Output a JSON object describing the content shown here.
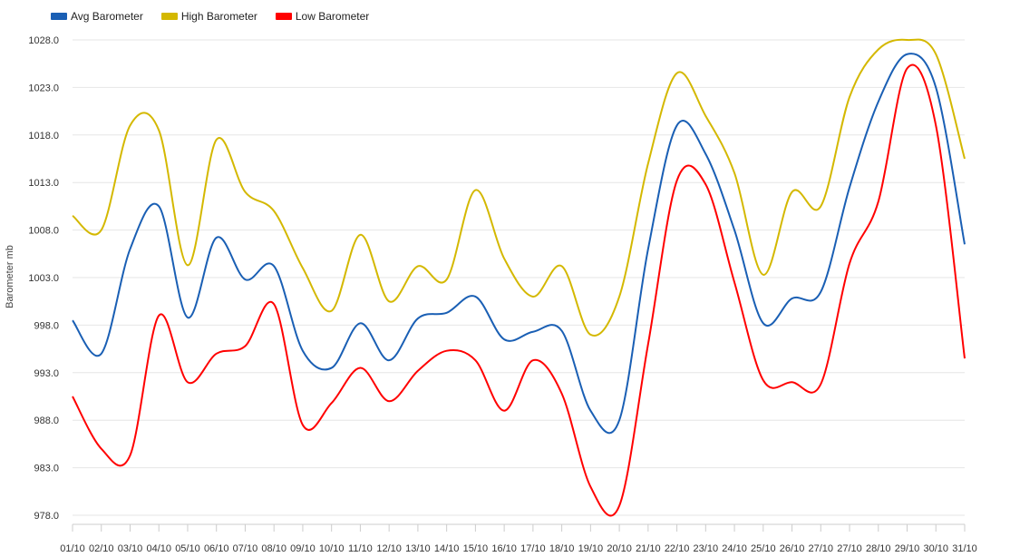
{
  "chart_data": {
    "type": "line",
    "smooth": true,
    "ylabel": "Barometer mb",
    "ylim": [
      978.0,
      1028.0
    ],
    "yticks": [
      "978.0",
      "983.0",
      "988.0",
      "993.0",
      "998.0",
      "1003.0",
      "1008.0",
      "1013.0",
      "1018.0",
      "1023.0",
      "1028.0"
    ],
    "categories": [
      "01/10",
      "02/10",
      "03/10",
      "04/10",
      "05/10",
      "06/10",
      "07/10",
      "08/10",
      "09/10",
      "10/10",
      "11/10",
      "12/10",
      "13/10",
      "14/10",
      "15/10",
      "16/10",
      "17/10",
      "18/10",
      "19/10",
      "20/10",
      "21/10",
      "22/10",
      "23/10",
      "24/10",
      "25/10",
      "26/10",
      "27/10",
      "27/10",
      "28/10",
      "29/10",
      "30/10",
      "31/10"
    ],
    "grid": true,
    "legend_position": "top-left",
    "series": [
      {
        "name": "Avg Barometer",
        "color": "#1a5fb4",
        "values": [
          998.5,
          995.0,
          1006.0,
          1010.5,
          998.8,
          1007.2,
          1002.8,
          1004.2,
          995.3,
          993.5,
          998.2,
          994.3,
          998.7,
          999.3,
          1001.0,
          996.5,
          997.3,
          997.4,
          989.0,
          988.0,
          1006.0,
          1019.0,
          1016.0,
          1008.0,
          998.2,
          1000.8,
          1001.5,
          1012.5,
          1021.5,
          1026.5,
          1023.0,
          1006.5
        ]
      },
      {
        "name": "High Barometer",
        "color": "#d4b800",
        "values": [
          1009.5,
          1008.0,
          1019.0,
          1018.5,
          1004.3,
          1017.5,
          1012.0,
          1010.0,
          1004.0,
          999.5,
          1007.5,
          1000.5,
          1004.2,
          1002.8,
          1012.2,
          1005.0,
          1001.0,
          1004.2,
          997.0,
          1001.0,
          1015.0,
          1024.5,
          1020.0,
          1014.0,
          1003.3,
          1012.0,
          1010.5,
          1022.0,
          1027.0,
          1028.0,
          1026.5,
          1015.5
        ]
      },
      {
        "name": "Low Barometer",
        "color": "#ff0000",
        "values": [
          990.5,
          985.0,
          984.3,
          999.0,
          992.0,
          995.0,
          995.8,
          1000.2,
          987.5,
          989.8,
          993.5,
          990.0,
          993.2,
          995.3,
          994.3,
          989.0,
          994.3,
          990.8,
          981.0,
          979.0,
          996.0,
          1013.2,
          1012.8,
          1002.5,
          992.2,
          992.0,
          991.8,
          1004.5,
          1011.0,
          1025.0,
          1019.0,
          994.5
        ]
      }
    ]
  }
}
